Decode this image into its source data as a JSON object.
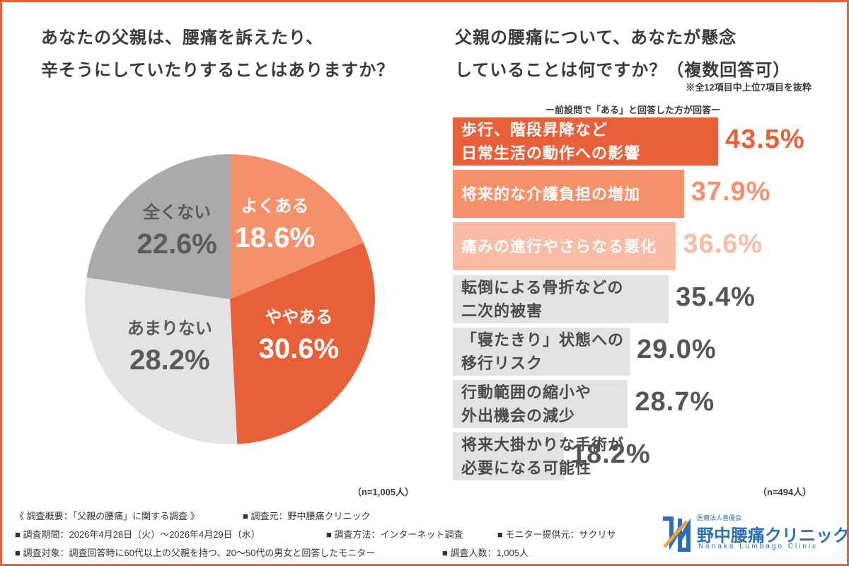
{
  "chart_data": [
    {
      "type": "pie",
      "title": "あなたの父親は、腰痛を訴えたり、\n辛そうにしていたりすることはありますか？",
      "categories": [
        "よくある",
        "ややある",
        "あまりない",
        "全くない"
      ],
      "values": [
        18.6,
        30.6,
        28.2,
        22.6
      ],
      "value_labels": [
        "18.6%",
        "30.6%",
        "28.2%",
        "22.6%"
      ],
      "colors": [
        "#f4906a",
        "#e8603a",
        "#e3e3e6",
        "#aaa9ab"
      ],
      "label_colors": [
        "#ffffff",
        "#ffffff",
        "#5a5a5a",
        "#5a5a5a"
      ],
      "sample": "（n=1,005人）"
    },
    {
      "type": "bar",
      "orientation": "horizontal",
      "title": "父親の腰痛について、あなたが懸念\nしていることは何ですか？（複数回答可）",
      "note": "※全12項目中上位7項目を抜粋",
      "subtitle": "ー前設問で「ある」と回答した方が回答ー",
      "categories": [
        "歩行、階段昇降など\n日常生活の動作への影響",
        "将来的な介護負担の増加",
        "痛みの進行やさらなる悪化",
        "転倒による骨折などの\n二次的被害",
        "「寝たきり」状態への\n移行リスク",
        "行動範囲の縮小や\n外出機会の減少",
        "将来大掛かりな手術が\n必要になる可能性"
      ],
      "values": [
        43.5,
        37.9,
        36.6,
        35.4,
        29.0,
        28.7,
        18.2
      ],
      "value_labels": [
        "43.5%",
        "37.9%",
        "36.6%",
        "35.4%",
        "29.0%",
        "28.7%",
        "18.2%"
      ],
      "colors": [
        "#e8603a",
        "#f4906a",
        "#f9bba3",
        "#e3e3e6",
        "#e3e3e6",
        "#e3e3e6",
        "#e3e3e6"
      ],
      "label_colors": [
        "#ffffff",
        "#ffffff",
        "#ffffff",
        "#4a4a4a",
        "#4a4a4a",
        "#4a4a4a",
        "#4a4a4a"
      ],
      "value_label_colors": [
        "#e8603a",
        "#f4906a",
        "#f9bba3",
        "#555555",
        "#555555",
        "#555555",
        "#555555"
      ],
      "xlim": [
        0,
        50
      ],
      "sample": "（n=494人）"
    }
  ],
  "footer": {
    "lines": [
      [
        "《 調査概要：「父親の腰痛」に関する調査 》",
        "■ 調査元：野中腰痛クリニック"
      ],
      [
        "■ 調査期間：2026年4月28日（火）～2026年4月29日（水）",
        "■ 調査方法：インターネット調査",
        "■ モニター提供元：サクリサ"
      ],
      [
        "■ 調査対象：調査回答時に60代以上の父親を持つ、20～50代の男女と回答したモニター",
        "■ 調査人数：1,005人"
      ]
    ]
  },
  "logo": {
    "org": "医療法人喜優会",
    "name": "野中腰痛クリニック",
    "english": "Nonaka Lumbago Clinic"
  }
}
